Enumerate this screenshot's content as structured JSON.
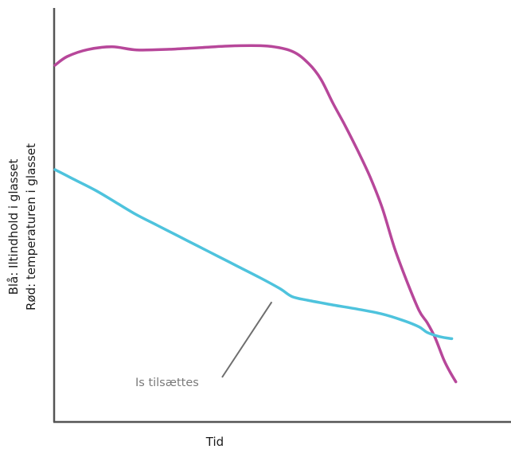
{
  "chart_data": {
    "type": "line",
    "title": "",
    "xlabel": "Tid",
    "ylabel_lines": [
      "Blå: Iltindhold i glasset",
      "Rød: temperaturen i glasset"
    ],
    "grid": false,
    "legend": "none",
    "xlim": [
      0,
      100
    ],
    "ylim": [
      0,
      100
    ],
    "series": [
      {
        "color": "#b7479a",
        "x": [
          0,
          3,
          8,
          14,
          20,
          28,
          36,
          44,
          52,
          58,
          62,
          65,
          68,
          71,
          74,
          77,
          80,
          83,
          86,
          89,
          91,
          93,
          95,
          96.5,
          98
        ],
        "y": [
          92,
          94.5,
          96.5,
          97.3,
          96.4,
          96.6,
          97.1,
          97.6,
          97.5,
          96,
          92.5,
          88,
          81,
          74.5,
          67.5,
          60,
          51,
          39.5,
          30,
          21.5,
          18,
          13.5,
          7.5,
          4,
          1
        ]
      },
      {
        "color": "#4ec3dd",
        "x": [
          0,
          5,
          10,
          15,
          20,
          25,
          30,
          35,
          40,
          45,
          50,
          55,
          58,
          62,
          68,
          74,
          80,
          85,
          89,
          91,
          94,
          97
        ],
        "y": [
          62,
          59,
          56,
          52.5,
          49,
          46,
          43,
          40,
          37,
          34,
          31,
          27.8,
          25.5,
          24.4,
          23.1,
          21.9,
          20.5,
          18.7,
          16.8,
          15.2,
          14,
          13.4
        ]
      }
    ],
    "annotations": [
      {
        "text": "Is tilsættes",
        "x": 53,
        "y": 25.8
      }
    ]
  }
}
